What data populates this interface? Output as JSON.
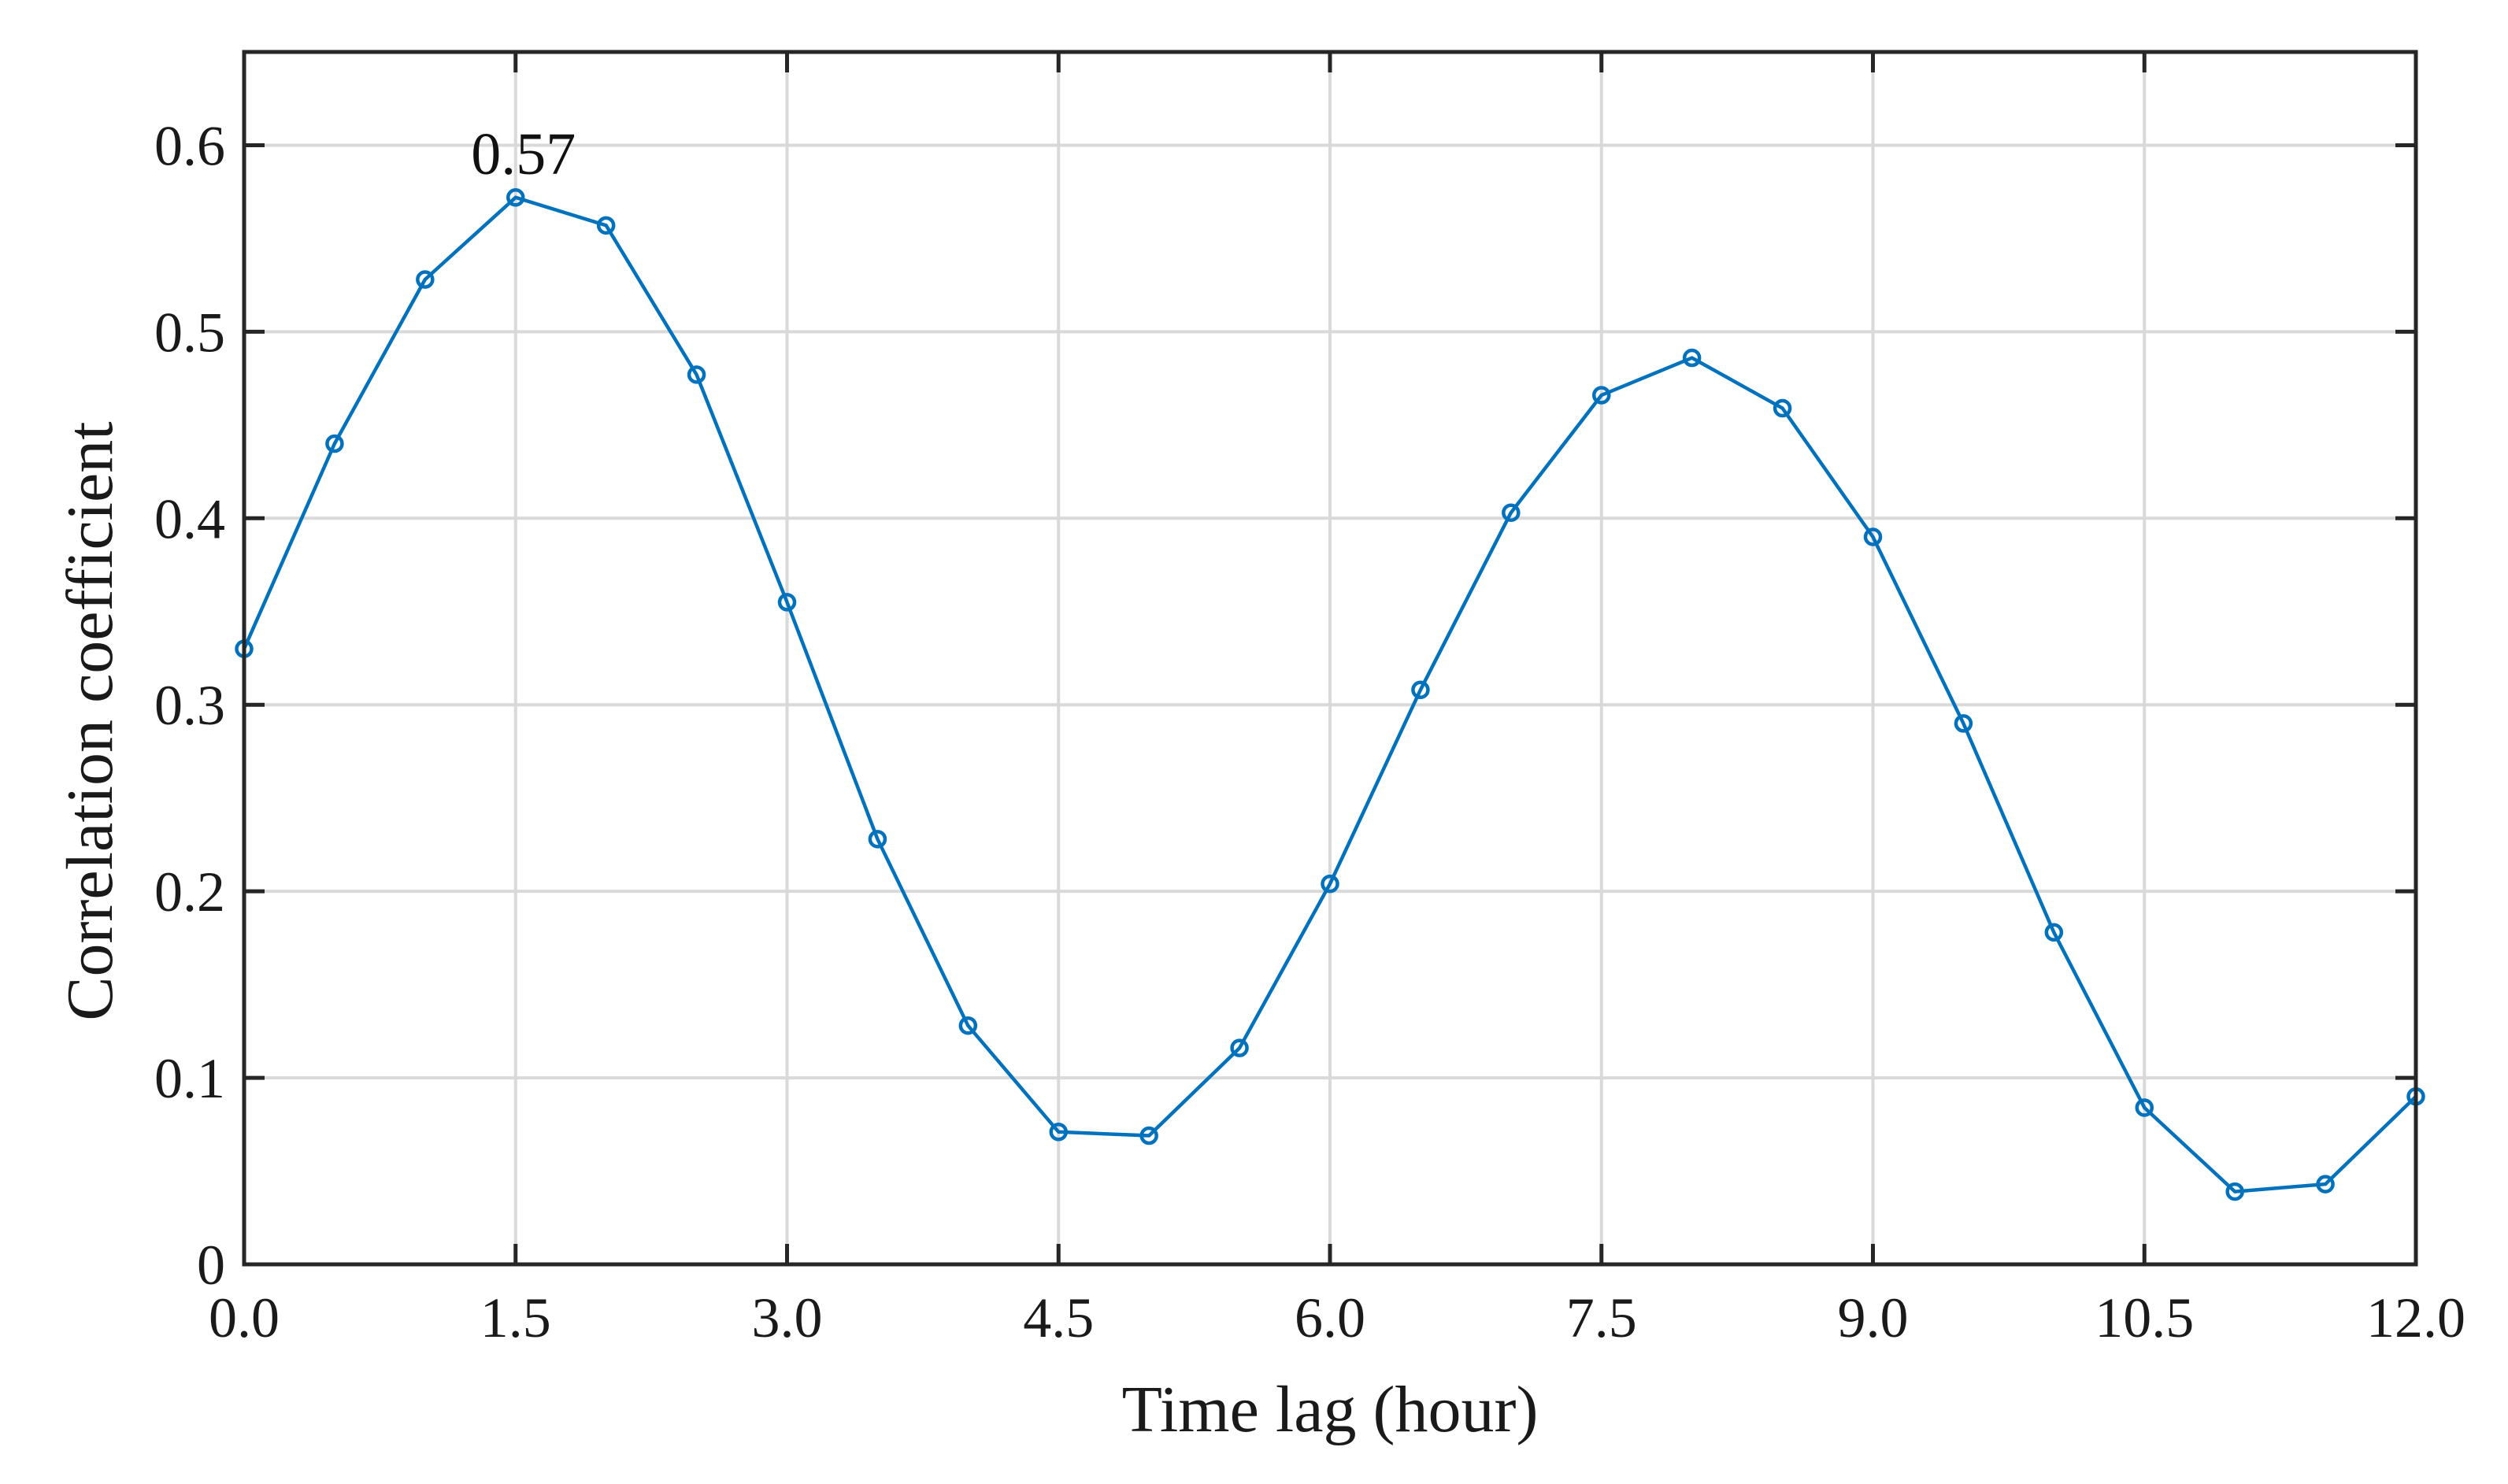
{
  "chart_data": {
    "type": "line",
    "title": "",
    "xlabel": "Time lag (hour)",
    "ylabel": "Correlation coefficient",
    "xlim": [
      0,
      12
    ],
    "ylim": [
      0,
      0.65
    ],
    "xticks": [
      0,
      1.5,
      3,
      4.5,
      6,
      7.5,
      9,
      10.5,
      12
    ],
    "xtick_labels": [
      "0.0",
      "1.5",
      "3.0",
      "4.5",
      "6.0",
      "7.5",
      "9.0",
      "10.5",
      "12.0"
    ],
    "yticks": [
      0,
      0.1,
      0.2,
      0.3,
      0.4,
      0.5,
      0.6
    ],
    "ytick_labels": [
      "0",
      "0.1",
      "0.2",
      "0.3",
      "0.4",
      "0.5",
      "0.6"
    ],
    "grid": true,
    "marker": "circle",
    "color": "#0072bd",
    "series": [
      {
        "x": [
          0,
          0.5,
          1,
          1.5,
          2,
          2.5,
          3,
          3.5,
          4,
          4.5,
          5,
          5.5,
          6,
          6.5,
          7,
          7.5,
          8,
          8.5,
          9,
          9.5,
          10,
          10.5,
          11,
          11.5,
          12
        ],
        "values": [
          0.33,
          0.44,
          0.528,
          0.572,
          0.557,
          0.477,
          0.355,
          0.228,
          0.128,
          0.071,
          0.069,
          0.116,
          0.204,
          0.308,
          0.403,
          0.466,
          0.486,
          0.459,
          0.39,
          0.29,
          0.178,
          0.084,
          0.039,
          0.043,
          0.09
        ]
      }
    ],
    "annotations": [
      {
        "text": "0.57",
        "x": 1.5,
        "y": 0.572
      }
    ]
  }
}
